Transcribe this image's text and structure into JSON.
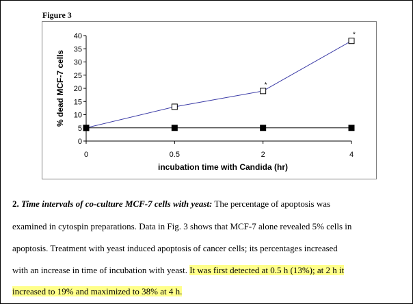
{
  "figure_label": "Figure 3",
  "chart_data": {
    "type": "line",
    "categories": [
      "0",
      "0.5",
      "2",
      "4"
    ],
    "series": [
      {
        "values": [
          5,
          13,
          19,
          38
        ],
        "marker": "open-square",
        "color": "#3a3aa6",
        "annotations": [
          "",
          "",
          "*",
          "*"
        ]
      },
      {
        "values": [
          5,
          5,
          5,
          5
        ],
        "marker": "filled-square",
        "color": "#000000",
        "annotations": [
          "",
          "",
          "",
          ""
        ]
      }
    ],
    "ylabel": "% dead MCF-7 cells",
    "xlabel": "incubation time with Candida (hr)",
    "yticks": [
      "0",
      "5",
      "10",
      "15",
      "20",
      "25",
      "30",
      "35",
      "40"
    ],
    "ylim": [
      0,
      40
    ],
    "grid": false,
    "legend": "none"
  },
  "text": {
    "heading_number": "2.",
    "heading": "Time intervals of co-culture MCF-7 cells with yeast:",
    "line1_rest": "The percentage of apoptosis was",
    "line2": "examined in cytospin preparations.  Data in Fig. 3 shows that MCF-7 alone revealed 5% cells in",
    "line3": "apoptosis.   Treatment with yeast induced apoptosis of cancer cells; its percentages increased",
    "line4_plain": "with an increase in time of incubation with yeast.",
    "line4_highlight": "It was first detected at 0.5 h (13%); at 2 h it",
    "line5_highlight": "increased to 19% and maximized to 38% at 4 h."
  },
  "colors": {
    "highlight": "#ffff8a",
    "treated_line": "#3a3aa6",
    "control_line": "#000000"
  }
}
